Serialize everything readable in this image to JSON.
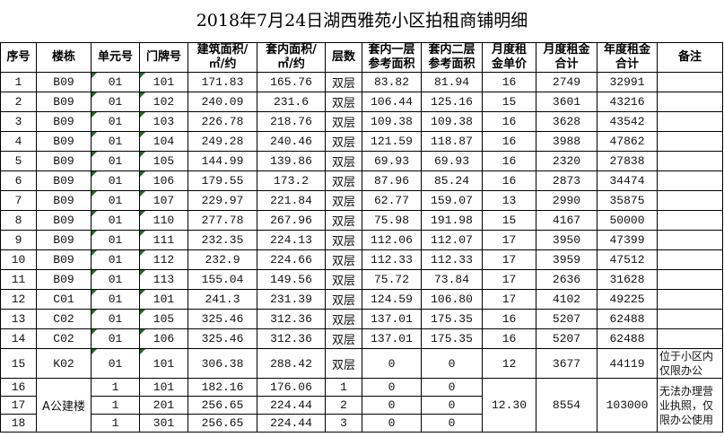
{
  "title": "2018年7月24日湖西雅苑小区拍租商铺明细",
  "headers": [
    "序号",
    "楼栋",
    "单元号",
    "门牌号",
    "建筑面积/\n㎡/约",
    "套内面积/\n㎡/约",
    "层数",
    "套内一层\n参考面积",
    "套内二层\n参考面积",
    "月度租\n金单价",
    "月度租金\n合计",
    "年度租金\n合计",
    "备注"
  ],
  "rows": [
    [
      "1",
      "B09",
      "01",
      "101",
      "171.83",
      "165.76",
      "双层",
      "83.82",
      "81.94",
      "16",
      "2749",
      "32991",
      ""
    ],
    [
      "2",
      "B09",
      "01",
      "102",
      "240.09",
      "231.6",
      "双层",
      "106.44",
      "125.16",
      "15",
      "3601",
      "43216",
      ""
    ],
    [
      "3",
      "B09",
      "01",
      "103",
      "226.78",
      "218.76",
      "双层",
      "109.38",
      "109.38",
      "16",
      "3628",
      "43542",
      ""
    ],
    [
      "4",
      "B09",
      "01",
      "104",
      "249.28",
      "240.46",
      "双层",
      "121.59",
      "118.87",
      "16",
      "3988",
      "47862",
      ""
    ],
    [
      "5",
      "B09",
      "01",
      "105",
      "144.99",
      "139.86",
      "双层",
      "69.93",
      "69.93",
      "16",
      "2320",
      "27838",
      ""
    ],
    [
      "6",
      "B09",
      "01",
      "106",
      "179.55",
      "173.2",
      "双层",
      "87.96",
      "85.24",
      "16",
      "2873",
      "34474",
      ""
    ],
    [
      "7",
      "B09",
      "01",
      "107",
      "229.97",
      "221.84",
      "双层",
      "62.77",
      "159.07",
      "13",
      "2990",
      "35875",
      ""
    ],
    [
      "8",
      "B09",
      "01",
      "110",
      "277.78",
      "267.96",
      "双层",
      "75.98",
      "191.98",
      "15",
      "4167",
      "50000",
      ""
    ],
    [
      "9",
      "B09",
      "01",
      "111",
      "232.35",
      "224.13",
      "双层",
      "112.06",
      "112.07",
      "17",
      "3950",
      "47399",
      ""
    ],
    [
      "10",
      "B09",
      "01",
      "112",
      "232.9",
      "224.66",
      "双层",
      "112.33",
      "112.33",
      "17",
      "3959",
      "47512",
      ""
    ],
    [
      "11",
      "B09",
      "01",
      "113",
      "155.04",
      "149.56",
      "双层",
      "75.72",
      "73.84",
      "17",
      "2636",
      "31628",
      ""
    ],
    [
      "12",
      "C01",
      "01",
      "101",
      "241.3",
      "231.39",
      "双层",
      "124.59",
      "106.80",
      "17",
      "4102",
      "49225",
      ""
    ],
    [
      "13",
      "C02",
      "01",
      "105",
      "325.46",
      "312.36",
      "双层",
      "137.01",
      "175.35",
      "16",
      "5207",
      "62488",
      ""
    ],
    [
      "14",
      "C02",
      "01",
      "106",
      "325.46",
      "312.36",
      "双层",
      "137.01",
      "175.35",
      "16",
      "5207",
      "62488",
      ""
    ],
    [
      "15",
      "K02",
      "01",
      "101",
      "306.38",
      "288.42",
      "双层",
      "0",
      "0",
      "12",
      "3677",
      "44119",
      "位于小区内仅限办公"
    ]
  ],
  "group": {
    "building": "A公建楼",
    "unit_price": "12.30",
    "monthly_total": "8554",
    "annual_total": "103000",
    "note": "无法办理营业执照，仅限办公使用",
    "rows": [
      [
        "16",
        "1",
        "101",
        "182.16",
        "176.06",
        "1",
        "0",
        "0"
      ],
      [
        "17",
        "1",
        "201",
        "256.65",
        "224.44",
        "2",
        "0",
        "0"
      ],
      [
        "18",
        "1",
        "301",
        "256.65",
        "224.44",
        "3",
        "0",
        "0"
      ]
    ]
  },
  "colors": {
    "marker": "#1e6b1e",
    "border": "#000000"
  }
}
